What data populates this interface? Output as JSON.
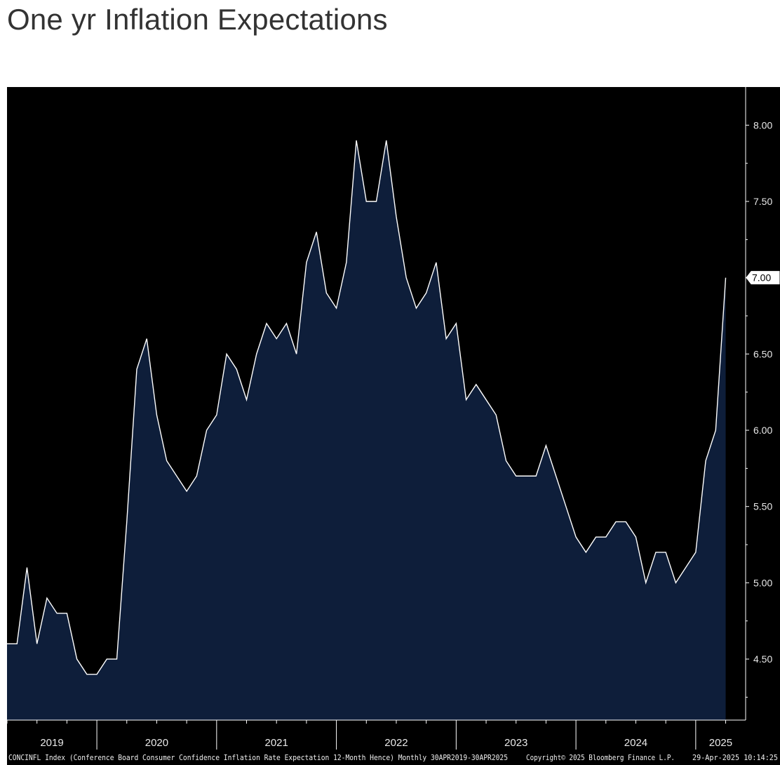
{
  "page": {
    "title": "One yr Inflation Expectations"
  },
  "chart_data": {
    "type": "area",
    "title": "",
    "xlabel": "",
    "ylabel": "",
    "x_ticks": [
      "2019",
      "2020",
      "2021",
      "2022",
      "2023",
      "2024",
      "2025"
    ],
    "y_ticks": [
      "8.00",
      "7.50",
      "7.00",
      "6.50",
      "6.00",
      "5.50",
      "5.00",
      "4.50"
    ],
    "y_tick_values": [
      8.0,
      7.5,
      7.0,
      6.5,
      6.0,
      5.5,
      5.0,
      4.5
    ],
    "ylim": [
      4.1,
      8.25
    ],
    "xlim": [
      "2019-04",
      "2025-06"
    ],
    "last_value_label": "7.00",
    "series": [
      {
        "name": "",
        "x": [
          "2019-04",
          "2019-05",
          "2019-06",
          "2019-07",
          "2019-08",
          "2019-09",
          "2019-10",
          "2019-11",
          "2019-12",
          "2020-01",
          "2020-02",
          "2020-03",
          "2020-04",
          "2020-05",
          "2020-06",
          "2020-07",
          "2020-08",
          "2020-09",
          "2020-10",
          "2020-11",
          "2020-12",
          "2021-01",
          "2021-02",
          "2021-03",
          "2021-04",
          "2021-05",
          "2021-06",
          "2021-07",
          "2021-08",
          "2021-09",
          "2021-10",
          "2021-11",
          "2021-12",
          "2022-01",
          "2022-02",
          "2022-03",
          "2022-04",
          "2022-05",
          "2022-06",
          "2022-07",
          "2022-08",
          "2022-09",
          "2022-10",
          "2022-11",
          "2022-12",
          "2023-01",
          "2023-02",
          "2023-03",
          "2023-04",
          "2023-05",
          "2023-06",
          "2023-07",
          "2023-08",
          "2023-09",
          "2023-10",
          "2023-11",
          "2023-12",
          "2024-01",
          "2024-02",
          "2024-03",
          "2024-04",
          "2024-05",
          "2024-06",
          "2024-07",
          "2024-08",
          "2024-09",
          "2024-10",
          "2024-11",
          "2024-12",
          "2025-01",
          "2025-02",
          "2025-03",
          "2025-04"
        ],
        "values": [
          4.6,
          4.6,
          5.1,
          4.6,
          4.9,
          4.8,
          4.8,
          4.5,
          4.4,
          4.4,
          4.5,
          4.5,
          5.4,
          6.4,
          6.6,
          6.1,
          5.8,
          5.7,
          5.6,
          5.7,
          6.0,
          6.1,
          6.5,
          6.4,
          6.2,
          6.5,
          6.7,
          6.6,
          6.7,
          6.5,
          7.1,
          7.3,
          6.9,
          6.8,
          7.1,
          7.9,
          7.5,
          7.5,
          7.9,
          7.4,
          7.0,
          6.8,
          6.9,
          7.1,
          6.6,
          6.7,
          6.2,
          6.3,
          6.2,
          6.1,
          5.8,
          5.7,
          5.7,
          5.7,
          5.9,
          5.7,
          5.5,
          5.3,
          5.2,
          5.3,
          5.3,
          5.4,
          5.4,
          5.3,
          5.0,
          5.2,
          5.2,
          5.0,
          5.1,
          5.2,
          5.8,
          6.0,
          7.0
        ]
      }
    ],
    "grid": false,
    "legend": "none",
    "colors": {
      "background": "#000000",
      "fill": "#0e1e3a",
      "line": "#ffffff",
      "axis": "#ffffff"
    }
  },
  "footer": {
    "description": "CONCINFL Index (Conference Board Consumer Confidence Inflation Rate Expectation 12-Month Hence)  Monthly 30APR2019-30APR2025",
    "copyright": "Copyright© 2025 Bloomberg Finance L.P.",
    "timestamp": "29-Apr-2025 10:14:25"
  }
}
